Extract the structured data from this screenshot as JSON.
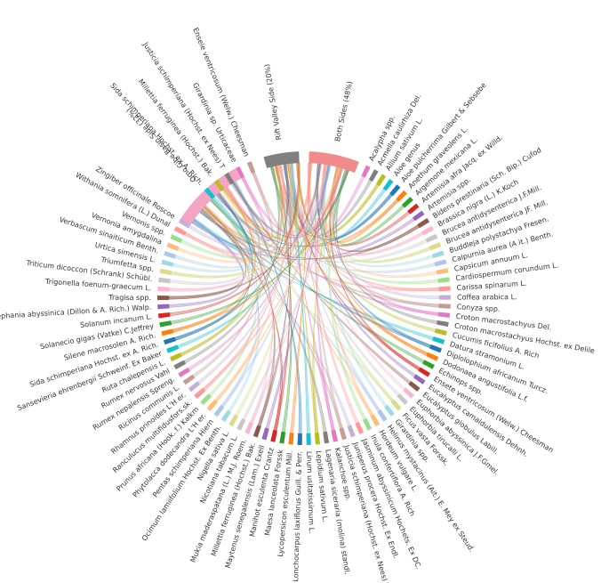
{
  "groups": [
    {
      "label": "Both Sides (48%)",
      "color": "#f28b8b"
    },
    {
      "label": "Rift Valley Side (20%)",
      "color": "#808080"
    },
    {
      "label": "Omo Gibe Basin Side (32%)",
      "color": "#f2a6c4"
    }
  ],
  "species": [
    "Acalypha spp.",
    "Acmella caulirhiza Del.",
    "Allium sativum L.",
    "Aloe genus",
    "Aloe pulcherrima Gilbert & Sebsebe",
    "Anethum graveolens L.",
    "Argemone mexicana L.",
    "Artemisia afra Jacq. ex Willd.",
    "Artemisia spp.",
    "Bidens prestinaria (Sch. Bip.) Cufod",
    "Brassica nigra (L.) K.Koch",
    "Brucea antidysenterica J.F.Mill.",
    "Brucea antidysenterica JF. Mill.",
    "Buddleja polystachya Fresen.",
    "Calpurnia aurea (A it.) Benth.",
    "Capsicum annuum L.",
    "Cardiospermum corundum L.",
    "Carissa spinarum L.",
    "Coffea arabica L.",
    "Conyza spp.",
    "Croton macrostachyus Del.",
    "Croton macrostachyus Hochst. ex Delile",
    "Cucumis ficifolius A. Rich",
    "Datura stramonium L.",
    "Diplolophium africanum Turcz.",
    "Dodonaea angustifolia L.f.",
    "Echinops spp.",
    "Ensete ventricosum (Welw.) Cheesman",
    "Eucalyptus camaldulensis Dehnh.",
    "Eucalyptus globulus Labill.",
    "Euphorbia abyssinica J.F.Gmel.",
    "Euphorbia tirucalli L.",
    "Ficus vasta Forssk.",
    "Girardinia spp.",
    "Helinus mystacinus (Ait.) E. Mey ex Steud.",
    "Hordeum vulgare L.",
    "Inula confertiflora A. Rich",
    "Jasminum abyssinicum Hochets. Ex DC.",
    "Juniperus procera Hochst. Ex Endl.",
    "Justicia schimperiana (Hochst. ex Nees) T",
    "Kalanchoe spp.",
    "Lagenaria siceraria (molina) standl.",
    "Lepidium sativum L.",
    "Linum usitatissimum L.",
    "Lonchocarpus laxiflorus Guill. & Perr.",
    "Lycopersicon esculentum Mill.",
    "Maesa lanceolata Forssk",
    "Manihot esculenta Crantz",
    "Maytenus senegalensis (Lam.) Exell",
    "Millettia ferruginea (Hochst.) Bak.",
    "Mukia maderaspatana (L.) M.J. Roem.",
    "Nicotiana tabacum L.",
    "Nigella sativa L.",
    "Ocimum lamiifolium Hochst. Ex Benth.",
    "Pentas schimperiana Hiern",
    "Phytolacca dodecandra L'H er.",
    "Prunus africana (Hook. f.) Kalkm",
    "Ranculucus multifidusfors.sk.",
    "Rhamnus prinoides L'H er.",
    "Ricinus communis L.",
    "Rumex nepalensis Spreng.",
    "Rumex nervosus Vahl",
    "Ruta chalepensis L.",
    "Sansevieria ehrenbergii Schweinf. Ex Baker",
    "Sida schimperiana Hochst. ex A. Rich.",
    "Silene macrosolen A. Rich.",
    "Solanecio gigas (Vatke) C.Jeffrey",
    "Solanum incanum L.",
    "Stephania abyssinica (Dillon & A. Rich.) Walp.",
    "Tragisa spp.",
    "Trigonella foenum-graecum L.",
    "Triticum dicoccon (Schrank) Schübl.",
    "Triumfetta spp.",
    "Urtica simensis L.",
    "Verbascum sinaiticum Benth.",
    "Vernonia amygdalina",
    "Vernonis spp.",
    "Withania somnifera (L.) Dunal",
    "Zingiber officinale Roscoe",
    "Enseie ventricosum (Welw.) Cheesman",
    "Girardinia sp. Urticaceae",
    "Justicia schimperiana (Hochst. ex Nees) T",
    "Millettia ferruginea (Hochst.) Bak.",
    "Sida schimperiana Hochst. ex A. Rich."
  ],
  "palette": [
    "#e377c2",
    "#7f7f7f",
    "#bcbd22",
    "#17becf",
    "#1f77b4",
    "#ff7f0e",
    "#2ca02c",
    "#d62728",
    "#9467bd",
    "#8c564b",
    "#f7b6d2",
    "#c7c7c7",
    "#dbdb8d",
    "#9edae5",
    "#aec7e8",
    "#ffbb78",
    "#98df8a",
    "#ff9896",
    "#c5b0d5",
    "#c49c94"
  ]
}
